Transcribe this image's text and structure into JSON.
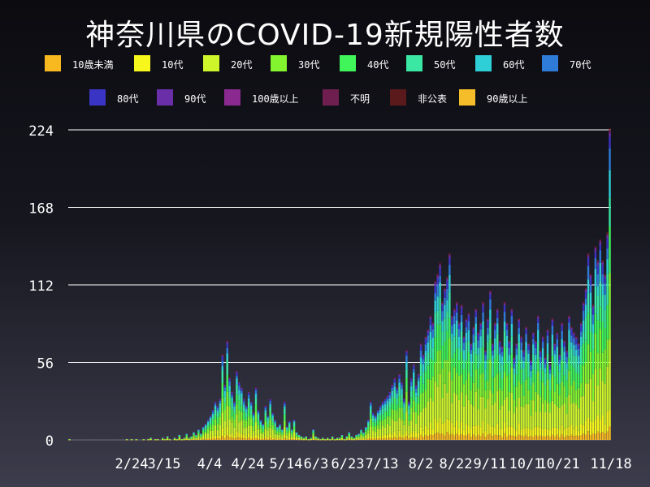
{
  "title": "神奈川県のCOVID-19新規陽性者数",
  "chart_data": {
    "type": "bar",
    "stacked": true,
    "title": "神奈川県のCOVID-19新規陽性者数",
    "ylim": [
      0,
      224
    ],
    "yticks": [
      0,
      56,
      112,
      168,
      224
    ],
    "xticks": [
      "2/24",
      "3/15",
      "4/4",
      "4/24",
      "5/14",
      "6/3",
      "6/23",
      "7/13",
      "8/2",
      "8/22",
      "9/11",
      "10/1",
      "10/21",
      "11/18"
    ],
    "grid": "horizontal",
    "legend_placement": "top",
    "series": [
      {
        "name": "10歳未満",
        "color": "#f8b920"
      },
      {
        "name": "10代",
        "color": "#f7f71b"
      },
      {
        "name": "20代",
        "color": "#cdf52a"
      },
      {
        "name": "30代",
        "color": "#82f52f"
      },
      {
        "name": "40代",
        "color": "#3ff55a"
      },
      {
        "name": "50代",
        "color": "#3ae8a3"
      },
      {
        "name": "60代",
        "color": "#2fcfd8"
      },
      {
        "name": "70代",
        "color": "#2f7bd8"
      },
      {
        "name": "80代",
        "color": "#3a34c4"
      },
      {
        "name": "90代",
        "color": "#6a2ea8"
      },
      {
        "name": "100歳以上",
        "color": "#8a2a90"
      },
      {
        "name": "不明",
        "color": "#6e1f50"
      },
      {
        "name": "非公表",
        "color": "#5a1a1c"
      },
      {
        "name": "90歳以上",
        "color": "#f5bd2a"
      }
    ],
    "daily_totals": [
      1,
      0,
      0,
      0,
      0,
      0,
      0,
      0,
      0,
      0,
      0,
      0,
      0,
      0,
      0,
      0,
      0,
      0,
      0,
      0,
      0,
      0,
      0,
      0,
      1,
      0,
      1,
      0,
      1,
      0,
      0,
      1,
      0,
      1,
      2,
      0,
      1,
      1,
      0,
      2,
      1,
      3,
      1,
      0,
      2,
      1,
      4,
      1,
      2,
      5,
      2,
      3,
      6,
      4,
      8,
      5,
      10,
      12,
      15,
      18,
      22,
      28,
      25,
      30,
      62,
      40,
      72,
      45,
      35,
      28,
      50,
      42,
      38,
      30,
      25,
      35,
      28,
      20,
      38,
      22,
      15,
      12,
      25,
      18,
      30,
      20,
      15,
      10,
      12,
      8,
      28,
      10,
      14,
      8,
      15,
      6,
      4,
      3,
      2,
      3,
      1,
      2,
      8,
      3,
      2,
      1,
      2,
      1,
      2,
      1,
      3,
      1,
      2,
      2,
      4,
      1,
      3,
      6,
      3,
      2,
      4,
      5,
      8,
      6,
      10,
      15,
      28,
      20,
      18,
      22,
      25,
      28,
      30,
      32,
      35,
      40,
      45,
      38,
      48,
      42,
      30,
      65,
      28,
      45,
      55,
      40,
      48,
      70,
      62,
      75,
      80,
      90,
      85,
      115,
      120,
      128,
      100,
      110,
      118,
      135,
      90,
      95,
      100,
      85,
      98,
      75,
      88,
      92,
      70,
      82,
      95,
      78,
      85,
      100,
      65,
      88,
      108,
      70,
      85,
      95,
      72,
      68,
      100,
      85,
      72,
      95,
      60,
      70,
      88,
      75,
      65,
      82,
      70,
      58,
      78,
      72,
      90,
      65,
      75,
      60,
      80,
      55,
      88,
      70,
      78,
      62,
      85,
      72,
      65,
      90,
      82,
      78,
      75,
      70,
      85,
      100,
      110,
      135,
      120,
      98,
      140,
      130,
      145,
      130,
      120,
      150,
      225
    ],
    "values_are": "approximate daily new positive cases (stacked by age group), read off the bar heights"
  }
}
